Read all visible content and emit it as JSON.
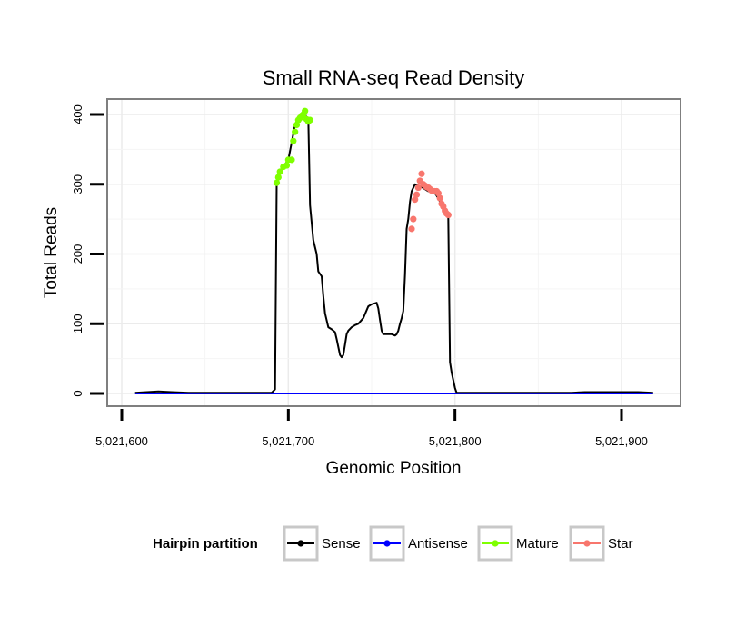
{
  "chart_data": {
    "type": "line",
    "title": "Small RNA-seq Read Density",
    "xlabel": "Genomic Position",
    "ylabel": "Total Reads",
    "xlim": [
      5021585,
      5021930
    ],
    "ylim": [
      -20,
      425
    ],
    "grid": true,
    "x_ticks": [
      5021600,
      5021700,
      5021800,
      5021900
    ],
    "x_tick_labels": [
      "5,021,600",
      "5,021,700",
      "5,021,800",
      "5,021,900"
    ],
    "y_ticks": [
      0,
      100,
      200,
      300,
      400
    ],
    "y_tick_labels": [
      "0",
      "100",
      "200",
      "300",
      "400"
    ],
    "legend": {
      "title": "Hairpin partition",
      "placement": "bottom",
      "entries": [
        "Sense",
        "Antisense",
        "Mature",
        "Star"
      ]
    },
    "series": [
      {
        "name": "Sense",
        "color": "#000000",
        "marker": false,
        "x": [
          5021608,
          5021615,
          5021622,
          5021630,
          5021640,
          5021660,
          5021690,
          5021692,
          5021693,
          5021694,
          5021697,
          5021700,
          5021702,
          5021704,
          5021706,
          5021708,
          5021710,
          5021711,
          5021712,
          5021713,
          5021715,
          5021717,
          5021718,
          5021720,
          5021721,
          5021722,
          5021724,
          5021726,
          5021728,
          5021729,
          5021731,
          5021732,
          5021733,
          5021734,
          5021735,
          5021736,
          5021738,
          5021740,
          5021742,
          5021745,
          5021748,
          5021750,
          5021753,
          5021754,
          5021755,
          5021756,
          5021757,
          5021758,
          5021760,
          5021762,
          5021764,
          5021765,
          5021766,
          5021767,
          5021768,
          5021769,
          5021770,
          5021771,
          5021772,
          5021773,
          5021774,
          5021776,
          5021778,
          5021780,
          5021782,
          5021784,
          5021786,
          5021788,
          5021790,
          5021792,
          5021794,
          5021796,
          5021797,
          5021798,
          5021800,
          5021801,
          5021820,
          5021850,
          5021870,
          5021878,
          5021890,
          5021900,
          5021910,
          5021919
        ],
        "y": [
          1,
          2,
          3,
          2,
          1,
          1,
          1,
          6,
          300,
          315,
          325,
          335,
          360,
          385,
          395,
          400,
          405,
          390,
          395,
          270,
          220,
          200,
          175,
          168,
          140,
          115,
          95,
          92,
          88,
          78,
          55,
          52,
          55,
          70,
          85,
          90,
          95,
          98,
          100,
          108,
          125,
          128,
          130,
          122,
          105,
          90,
          85,
          85,
          85,
          85,
          83,
          85,
          90,
          100,
          108,
          118,
          170,
          236,
          250,
          275,
          290,
          300,
          298,
          296,
          293,
          290,
          290,
          287,
          280,
          270,
          260,
          255,
          45,
          30,
          8,
          1,
          1,
          1,
          1,
          2,
          2,
          2,
          2,
          1
        ]
      },
      {
        "name": "Antisense",
        "color": "#0000ff",
        "marker": false,
        "x": [
          5021608,
          5021919
        ],
        "y": [
          0,
          0
        ]
      },
      {
        "name": "Mature",
        "color": "#7fff00",
        "marker": true,
        "x": [
          5021693,
          5021694,
          5021695,
          5021697,
          5021699,
          5021700,
          5021702,
          5021703,
          5021704,
          5021705,
          5021706,
          5021707,
          5021708,
          5021709,
          5021710,
          5021711,
          5021712,
          5021713
        ],
        "y": [
          302,
          310,
          318,
          325,
          327,
          335,
          335,
          362,
          375,
          385,
          392,
          395,
          398,
          400,
          405,
          393,
          390,
          392
        ]
      },
      {
        "name": "Star",
        "color": "#f8766d",
        "marker": true,
        "x": [
          5021774,
          5021775,
          5021776,
          5021777,
          5021778,
          5021779,
          5021780,
          5021781,
          5021782,
          5021783,
          5021784,
          5021785,
          5021786,
          5021787,
          5021788,
          5021789,
          5021790,
          5021791,
          5021792,
          5021793,
          5021794,
          5021795,
          5021796
        ],
        "y": [
          236,
          250,
          278,
          285,
          295,
          305,
          315,
          300,
          298,
          296,
          295,
          293,
          291,
          290,
          290,
          290,
          287,
          280,
          272,
          268,
          262,
          258,
          256
        ]
      }
    ]
  }
}
